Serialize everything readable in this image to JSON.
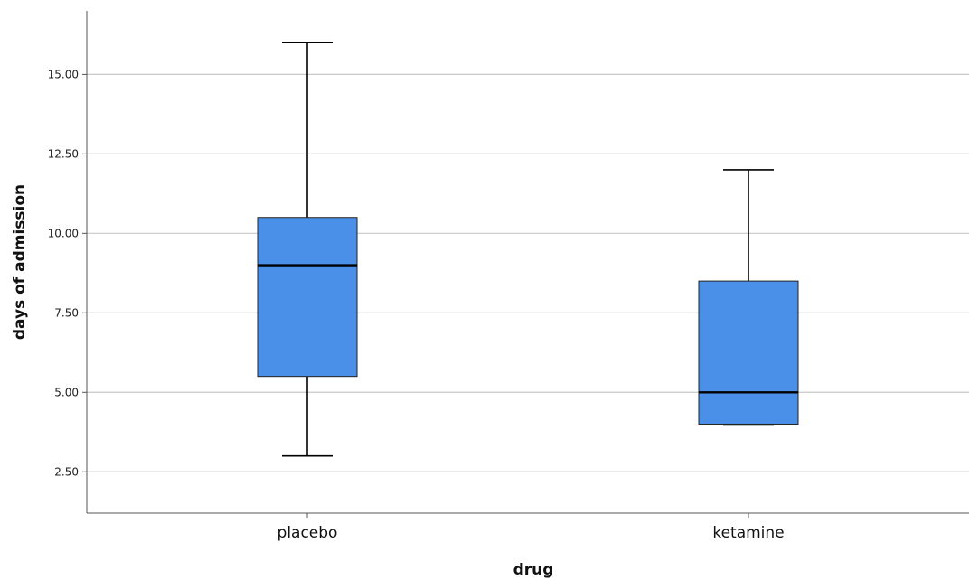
{
  "chart_data": {
    "type": "boxplot",
    "title": "",
    "xlabel": "drug",
    "ylabel": "days of admission",
    "ylim": [
      1.2,
      17.0
    ],
    "yticks": [
      2.5,
      5.0,
      7.5,
      10.0,
      12.5,
      15.0
    ],
    "ytick_labels": [
      "2.50",
      "5.00",
      "7.50",
      "10.00",
      "12.50",
      "15.00"
    ],
    "grid": true,
    "box_color": "#4a8fe8",
    "line_color": "#000000",
    "grid_color": "#c8c8c8",
    "categories": [
      "placebo",
      "ketamine"
    ],
    "boxes": [
      {
        "category": "placebo",
        "min": 3.0,
        "q1": 5.5,
        "median": 9.0,
        "q3": 10.5,
        "max": 16.0
      },
      {
        "category": "ketamine",
        "min": 4.0,
        "q1": 4.0,
        "median": 5.0,
        "q3": 8.5,
        "max": 12.0
      }
    ]
  }
}
